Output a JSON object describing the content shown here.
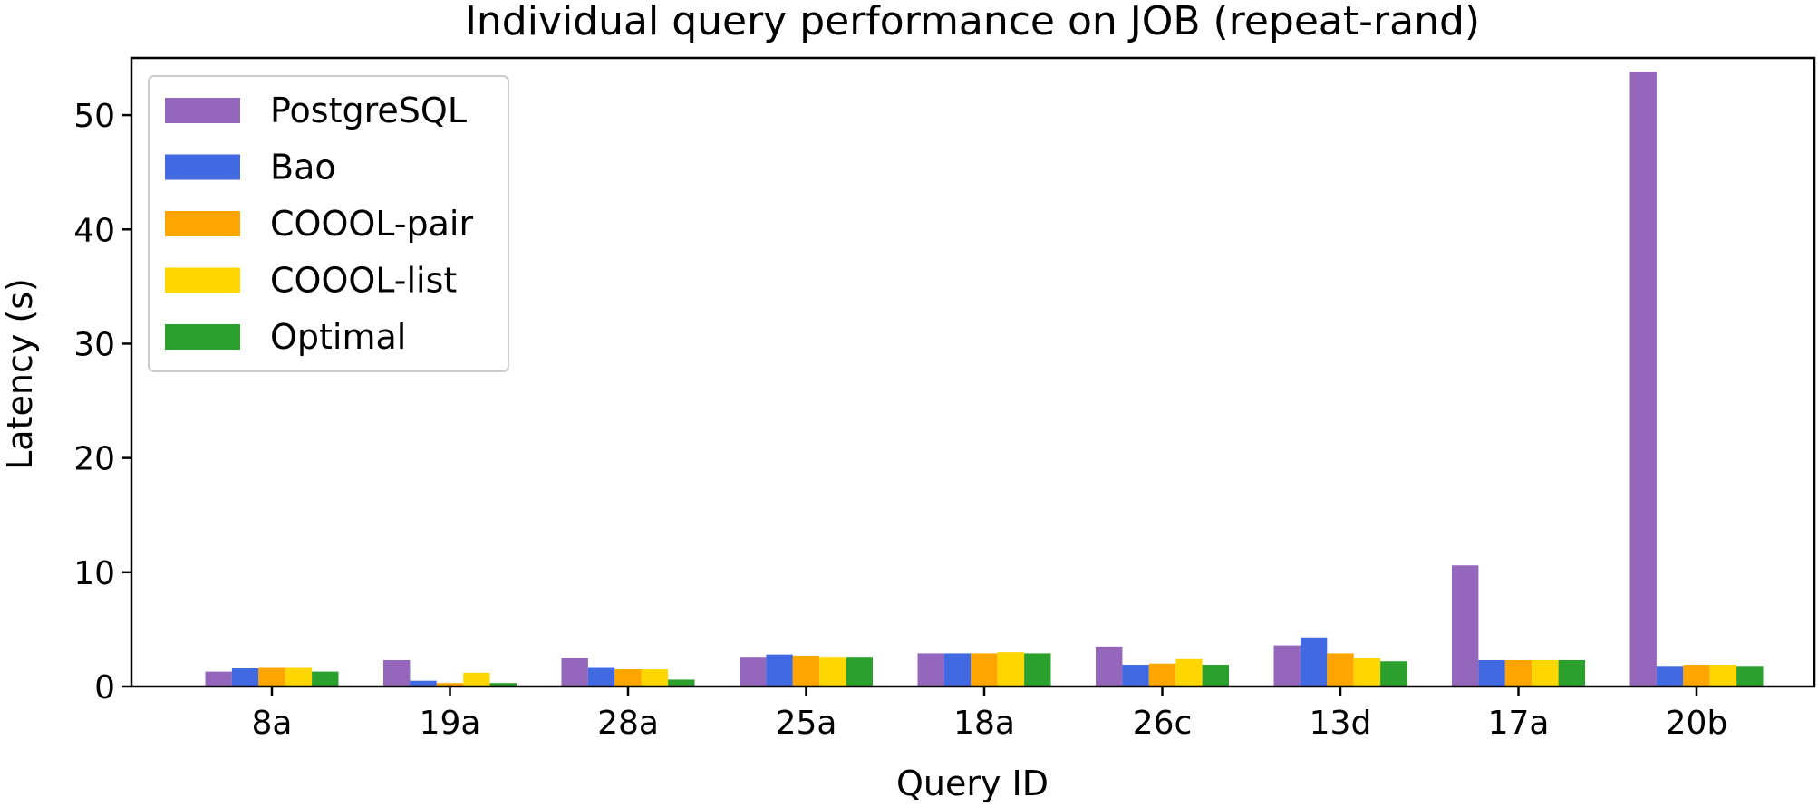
{
  "chart_data": {
    "type": "bar",
    "title": "Individual query performance on JOB (repeat-rand)",
    "xlabel": "Query ID",
    "ylabel": "Latency (s)",
    "categories": [
      "8a",
      "19a",
      "28a",
      "25a",
      "18a",
      "26c",
      "13d",
      "17a",
      "20b"
    ],
    "ylim": [
      0,
      55
    ],
    "yticks": [
      "0",
      "10",
      "20",
      "30",
      "40",
      "50"
    ],
    "grid": false,
    "legend_position": "top-left",
    "series": [
      {
        "name": "PostgreSQL",
        "color": "#9467bd",
        "values": [
          1.3,
          2.3,
          2.5,
          2.6,
          2.9,
          3.5,
          3.6,
          10.6,
          53.8
        ]
      },
      {
        "name": "Bao",
        "color": "#4169e1",
        "values": [
          1.6,
          0.5,
          1.7,
          2.8,
          2.9,
          1.9,
          4.3,
          2.3,
          1.8
        ]
      },
      {
        "name": "COOOL-pair",
        "color": "#ffa500",
        "values": [
          1.7,
          0.3,
          1.5,
          2.7,
          2.9,
          2.0,
          2.9,
          2.3,
          1.9
        ]
      },
      {
        "name": "COOOL-list",
        "color": "#ffd700",
        "values": [
          1.7,
          1.2,
          1.5,
          2.6,
          3.0,
          2.4,
          2.5,
          2.3,
          1.9
        ]
      },
      {
        "name": "Optimal",
        "color": "#2ca02c",
        "values": [
          1.3,
          0.3,
          0.6,
          2.6,
          2.9,
          1.9,
          2.2,
          2.3,
          1.8
        ]
      }
    ]
  }
}
